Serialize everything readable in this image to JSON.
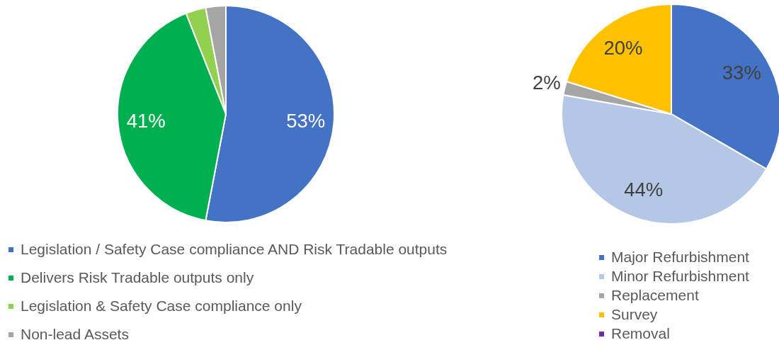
{
  "chart_data": [
    {
      "type": "pie",
      "categories": [
        "Legislation / Safety Case compliance AND Risk Tradable outputs",
        "Delivers Risk Tradable outputs only",
        "Legislation & Safety Case compliance only",
        "Non-lead Assets"
      ],
      "values": [
        53,
        41,
        3,
        3
      ],
      "colors": [
        "#4472c4",
        "#00b050",
        "#92d050",
        "#a5a5a5"
      ],
      "value_labels": [
        "53%",
        "41%",
        null,
        null
      ],
      "legend": "bottom"
    },
    {
      "type": "pie",
      "categories": [
        "Major Refurbishment",
        "Minor Refurbishment",
        "Replacement",
        "Survey",
        "Removal"
      ],
      "values": [
        33,
        44,
        2,
        20,
        0
      ],
      "colors": [
        "#4472c4",
        "#b4c7e7",
        "#a5a5a5",
        "#ffc000",
        "#7030a0"
      ],
      "value_labels": [
        "33%",
        "44%",
        "2%",
        "20%",
        null
      ],
      "legend": "bottom"
    }
  ]
}
